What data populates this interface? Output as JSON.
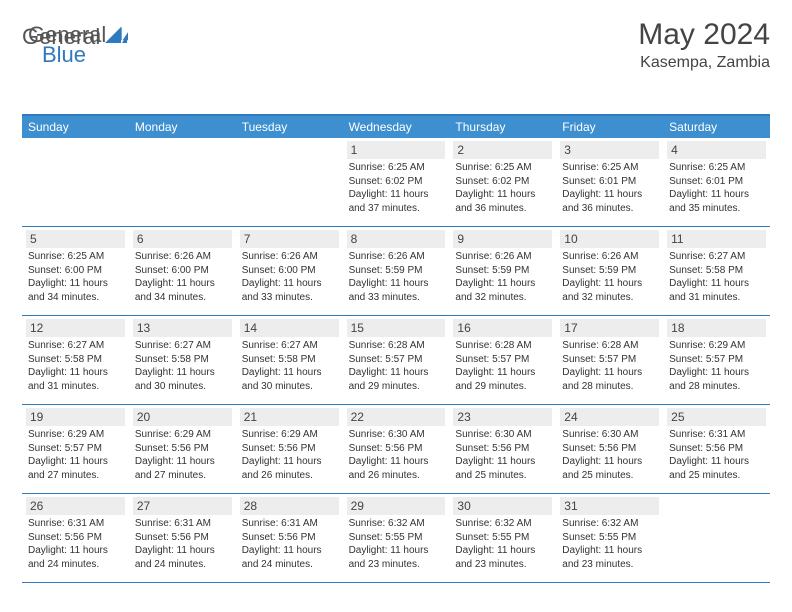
{
  "logo": {
    "part1": "General",
    "part2": "Blue"
  },
  "title": "May 2024",
  "location": "Kasempa, Zambia",
  "colors": {
    "header_bg": "#3d8fcf",
    "border": "#2f7abf",
    "daynum_bg": "#ededed",
    "text": "#333333",
    "brand_blue": "#2f7abf"
  },
  "day_names": [
    "Sunday",
    "Monday",
    "Tuesday",
    "Wednesday",
    "Thursday",
    "Friday",
    "Saturday"
  ],
  "weeks": [
    [
      {
        "n": "",
        "sr": "",
        "ss": "",
        "dl": ""
      },
      {
        "n": "",
        "sr": "",
        "ss": "",
        "dl": ""
      },
      {
        "n": "",
        "sr": "",
        "ss": "",
        "dl": ""
      },
      {
        "n": "1",
        "sr": "6:25 AM",
        "ss": "6:02 PM",
        "dl": "11 hours and 37 minutes."
      },
      {
        "n": "2",
        "sr": "6:25 AM",
        "ss": "6:02 PM",
        "dl": "11 hours and 36 minutes."
      },
      {
        "n": "3",
        "sr": "6:25 AM",
        "ss": "6:01 PM",
        "dl": "11 hours and 36 minutes."
      },
      {
        "n": "4",
        "sr": "6:25 AM",
        "ss": "6:01 PM",
        "dl": "11 hours and 35 minutes."
      }
    ],
    [
      {
        "n": "5",
        "sr": "6:25 AM",
        "ss": "6:00 PM",
        "dl": "11 hours and 34 minutes."
      },
      {
        "n": "6",
        "sr": "6:26 AM",
        "ss": "6:00 PM",
        "dl": "11 hours and 34 minutes."
      },
      {
        "n": "7",
        "sr": "6:26 AM",
        "ss": "6:00 PM",
        "dl": "11 hours and 33 minutes."
      },
      {
        "n": "8",
        "sr": "6:26 AM",
        "ss": "5:59 PM",
        "dl": "11 hours and 33 minutes."
      },
      {
        "n": "9",
        "sr": "6:26 AM",
        "ss": "5:59 PM",
        "dl": "11 hours and 32 minutes."
      },
      {
        "n": "10",
        "sr": "6:26 AM",
        "ss": "5:59 PM",
        "dl": "11 hours and 32 minutes."
      },
      {
        "n": "11",
        "sr": "6:27 AM",
        "ss": "5:58 PM",
        "dl": "11 hours and 31 minutes."
      }
    ],
    [
      {
        "n": "12",
        "sr": "6:27 AM",
        "ss": "5:58 PM",
        "dl": "11 hours and 31 minutes."
      },
      {
        "n": "13",
        "sr": "6:27 AM",
        "ss": "5:58 PM",
        "dl": "11 hours and 30 minutes."
      },
      {
        "n": "14",
        "sr": "6:27 AM",
        "ss": "5:58 PM",
        "dl": "11 hours and 30 minutes."
      },
      {
        "n": "15",
        "sr": "6:28 AM",
        "ss": "5:57 PM",
        "dl": "11 hours and 29 minutes."
      },
      {
        "n": "16",
        "sr": "6:28 AM",
        "ss": "5:57 PM",
        "dl": "11 hours and 29 minutes."
      },
      {
        "n": "17",
        "sr": "6:28 AM",
        "ss": "5:57 PM",
        "dl": "11 hours and 28 minutes."
      },
      {
        "n": "18",
        "sr": "6:29 AM",
        "ss": "5:57 PM",
        "dl": "11 hours and 28 minutes."
      }
    ],
    [
      {
        "n": "19",
        "sr": "6:29 AM",
        "ss": "5:57 PM",
        "dl": "11 hours and 27 minutes."
      },
      {
        "n": "20",
        "sr": "6:29 AM",
        "ss": "5:56 PM",
        "dl": "11 hours and 27 minutes."
      },
      {
        "n": "21",
        "sr": "6:29 AM",
        "ss": "5:56 PM",
        "dl": "11 hours and 26 minutes."
      },
      {
        "n": "22",
        "sr": "6:30 AM",
        "ss": "5:56 PM",
        "dl": "11 hours and 26 minutes."
      },
      {
        "n": "23",
        "sr": "6:30 AM",
        "ss": "5:56 PM",
        "dl": "11 hours and 25 minutes."
      },
      {
        "n": "24",
        "sr": "6:30 AM",
        "ss": "5:56 PM",
        "dl": "11 hours and 25 minutes."
      },
      {
        "n": "25",
        "sr": "6:31 AM",
        "ss": "5:56 PM",
        "dl": "11 hours and 25 minutes."
      }
    ],
    [
      {
        "n": "26",
        "sr": "6:31 AM",
        "ss": "5:56 PM",
        "dl": "11 hours and 24 minutes."
      },
      {
        "n": "27",
        "sr": "6:31 AM",
        "ss": "5:56 PM",
        "dl": "11 hours and 24 minutes."
      },
      {
        "n": "28",
        "sr": "6:31 AM",
        "ss": "5:56 PM",
        "dl": "11 hours and 24 minutes."
      },
      {
        "n": "29",
        "sr": "6:32 AM",
        "ss": "5:55 PM",
        "dl": "11 hours and 23 minutes."
      },
      {
        "n": "30",
        "sr": "6:32 AM",
        "ss": "5:55 PM",
        "dl": "11 hours and 23 minutes."
      },
      {
        "n": "31",
        "sr": "6:32 AM",
        "ss": "5:55 PM",
        "dl": "11 hours and 23 minutes."
      },
      {
        "n": "",
        "sr": "",
        "ss": "",
        "dl": ""
      }
    ]
  ],
  "labels": {
    "sunrise": "Sunrise:",
    "sunset": "Sunset:",
    "daylight": "Daylight:"
  }
}
